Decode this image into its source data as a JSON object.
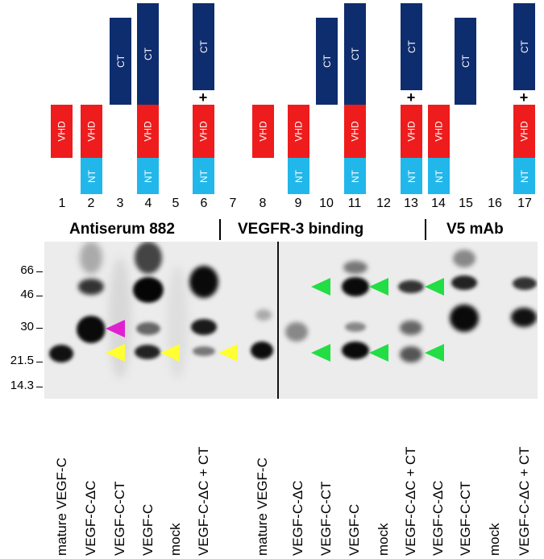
{
  "domain_labels": {
    "ct": "CT",
    "vhd": "VHD",
    "nt": "NT",
    "plus": "+"
  },
  "lanes": [
    "1",
    "2",
    "3",
    "4",
    "5",
    "6",
    "7",
    "8",
    "9",
    "10",
    "11",
    "12",
    "13",
    "14",
    "15",
    "16",
    "17"
  ],
  "sections": {
    "antiserum": "Antiserum 882",
    "vegfr3": "VEGFR-3 binding",
    "v5": "V5 mAb"
  },
  "markers": [
    "66",
    "46",
    "30",
    "21.5",
    "14.3"
  ],
  "samples": [
    "mature VEGF-C",
    "VEGF-C-ΔC",
    "VEGF-C-CT",
    "VEGF-C",
    "mock",
    "VEGF-C-ΔC + CT",
    "mature VEGF-C",
    "VEGF-C-ΔC",
    "VEGF-C-CT",
    "VEGF-C",
    "mock",
    "VEGF-C-ΔC + CT",
    "VEGF-C-ΔC",
    "VEGF-C-CT",
    "mock",
    "VEGF-C-ΔC + CT"
  ],
  "colors": {
    "ct": "#0e2d6e",
    "vhd": "#ee1c1c",
    "nt": "#21b7ea",
    "arrow_yellow": "#ffff33",
    "arrow_magenta": "#e020d0",
    "arrow_green": "#22dd44"
  }
}
